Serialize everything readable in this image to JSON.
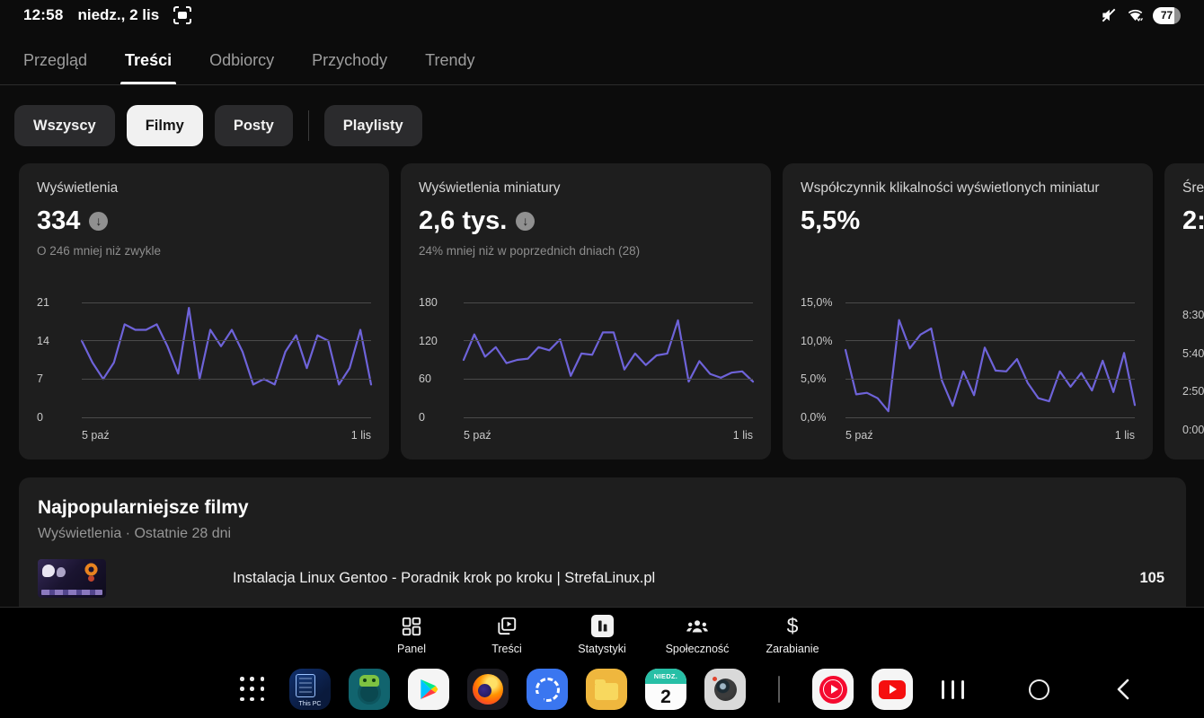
{
  "colors": {
    "chart_line": "#6e63d9",
    "grid_line": "#4a4a4a",
    "card_bg": "#1e1e1e",
    "page_bg": "#0c0c0c",
    "chip_selected_bg": "#f1f1f1"
  },
  "icons": {
    "down_arrow": "↓"
  },
  "status_bar": {
    "time": "12:58",
    "date": "niedz., 2 lis",
    "battery_percent": "77"
  },
  "tabs": {
    "items": [
      {
        "label": "Przegląd",
        "active": false
      },
      {
        "label": "Treści",
        "active": true
      },
      {
        "label": "Odbiorcy",
        "active": false
      },
      {
        "label": "Przychody",
        "active": false
      },
      {
        "label": "Trendy",
        "active": false
      }
    ]
  },
  "filter_chips": {
    "items": [
      {
        "label": "Wszyscy",
        "selected": false
      },
      {
        "label": "Filmy",
        "selected": true
      },
      {
        "label": "Posty",
        "selected": false
      },
      {
        "label": "Playlisty",
        "selected": false
      }
    ]
  },
  "chart_data": [
    {
      "type": "line",
      "title": "Wyświetlenia",
      "value": "334",
      "trend": "down",
      "subtitle": "O 246 mniej niż zwykle",
      "y_ticks": [
        "21",
        "14",
        "7",
        "0"
      ],
      "ylim": [
        0,
        21
      ],
      "ymax": 21,
      "x_labels": [
        "5 paź",
        "1 lis"
      ],
      "grid": true,
      "values": [
        14,
        10,
        7,
        10,
        17,
        16,
        16,
        17,
        13,
        8,
        20,
        7,
        16,
        13,
        16,
        12,
        6,
        7,
        6,
        12,
        15,
        9,
        15,
        14,
        6,
        9,
        16,
        6
      ]
    },
    {
      "type": "line",
      "title": "Wyświetlenia miniatury",
      "value": "2,6 tys.",
      "trend": "down",
      "subtitle": "24% mniej niż w poprzednich dniach (28)",
      "y_ticks": [
        "180",
        "120",
        "60",
        "0"
      ],
      "ylim": [
        0,
        180
      ],
      "ymax": 180,
      "x_labels": [
        "5 paź",
        "1 lis"
      ],
      "grid": true,
      "values": [
        90,
        130,
        95,
        110,
        85,
        90,
        92,
        110,
        105,
        122,
        65,
        100,
        98,
        133,
        133,
        75,
        100,
        82,
        97,
        100,
        152,
        56,
        88,
        68,
        62,
        70,
        72,
        56
      ]
    },
    {
      "type": "line",
      "title": "Współczynnik klikalności wyświetlonych miniatur",
      "value": "5,5%",
      "trend": "",
      "subtitle": "",
      "y_ticks": [
        "15,0%",
        "10,0%",
        "5,0%",
        "0,0%"
      ],
      "ylim": [
        0,
        15
      ],
      "ymax": 15,
      "x_labels": [
        "5 paź",
        "1 lis"
      ],
      "grid": true,
      "values": [
        8.8,
        3.0,
        3.2,
        2.5,
        0.8,
        12.7,
        9.0,
        10.8,
        11.6,
        4.8,
        1.5,
        6.0,
        2.9,
        9.1,
        6.1,
        6.0,
        7.6,
        4.5,
        2.5,
        2.1,
        6.0,
        4.0,
        5.8,
        3.5,
        7.4,
        3.3,
        8.4,
        1.6
      ]
    },
    {
      "type": "line",
      "title": "Śre",
      "value": "2:",
      "trend": "",
      "subtitle": "",
      "y_ticks": [
        "8:30",
        "5:40",
        "2:50",
        "0:00"
      ],
      "ymax": 510,
      "x_labels": [],
      "grid": true,
      "values": []
    }
  ],
  "top_videos": {
    "title": "Najpopularniejsze filmy",
    "subtitle": "Wyświetlenia · Ostatnie 28 dni",
    "rows": [
      {
        "title": "Instalacja Linux Gentoo - Poradnik krok po kroku | StrefaLinux.pl",
        "value": "105"
      }
    ]
  },
  "bottom_nav": {
    "items": [
      {
        "label": "Panel",
        "active": false
      },
      {
        "label": "Treści",
        "active": false
      },
      {
        "label": "Statystyki",
        "active": true
      },
      {
        "label": "Społeczność",
        "active": false
      },
      {
        "label": "Zarabianie",
        "active": false,
        "glyph": "$"
      }
    ]
  },
  "taskbar": {
    "this_pc_label": "This PC",
    "calendar_header": "NIEDZ.",
    "calendar_day": "2"
  }
}
